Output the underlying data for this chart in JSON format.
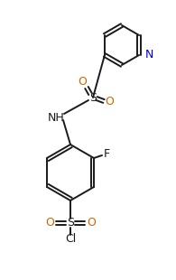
{
  "bg_color": "#ffffff",
  "line_color": "#1a1a1a",
  "text_color": "#1a1a1a",
  "atom_colors": {
    "N": "#0000cc",
    "O": "#cc6600",
    "S": "#1a1a1a",
    "F": "#1a1a1a",
    "Cl": "#1a1a1a"
  },
  "figsize": [
    1.95,
    3.1
  ],
  "dpi": 100
}
